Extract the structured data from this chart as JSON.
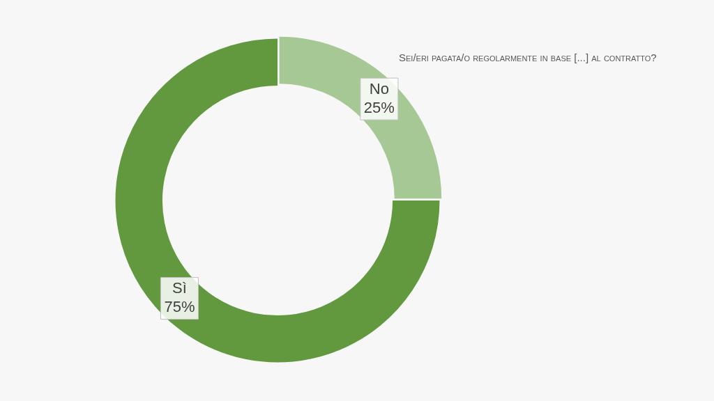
{
  "chart_data": {
    "type": "donut",
    "title": "Sei/eri pagata/o regolarmente in base [...] al contratto?",
    "categories": [
      "No",
      "Sì"
    ],
    "values": [
      25,
      75
    ],
    "value_labels": [
      "25%",
      "75%"
    ],
    "colors": [
      "#a5c894",
      "#62993e"
    ],
    "legend": false
  }
}
